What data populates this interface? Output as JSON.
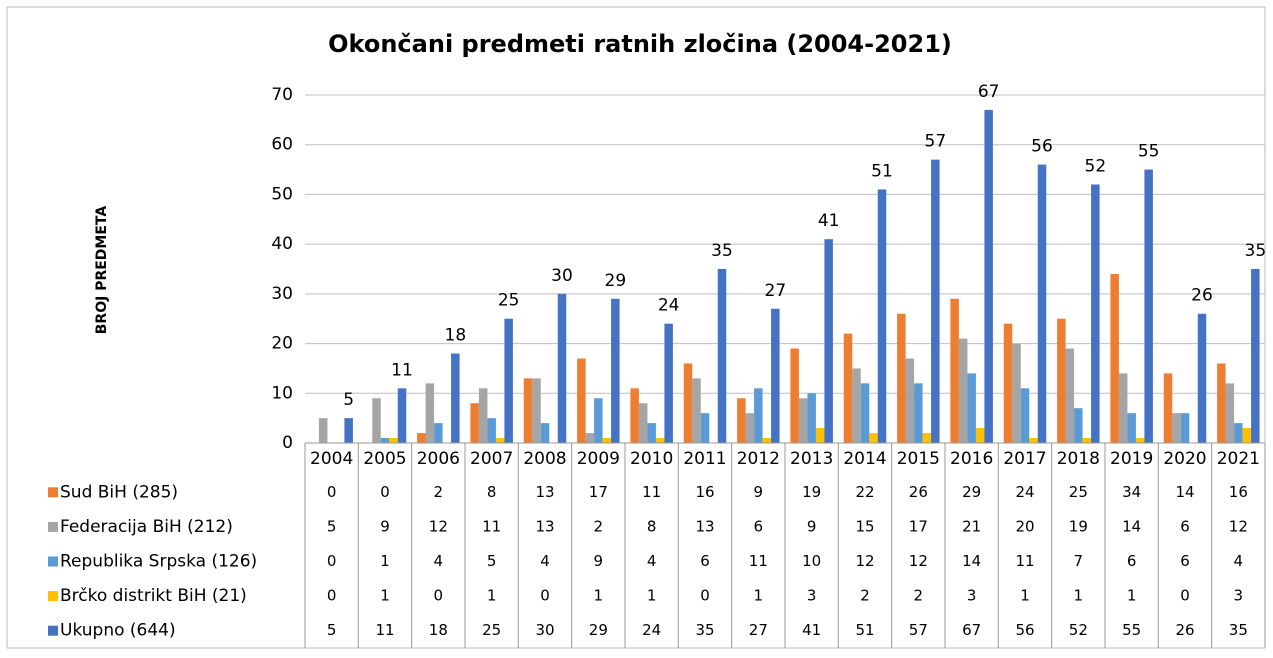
{
  "chart_data": {
    "type": "bar",
    "title": "Okončani predmeti ratnih zločina (2004-2021)",
    "ylabel": "BROJ PREDMETA",
    "categories": [
      "2004",
      "2005",
      "2006",
      "2007",
      "2008",
      "2009",
      "2010",
      "2011",
      "2012",
      "2013",
      "2014",
      "2015",
      "2016",
      "2017",
      "2018",
      "2019",
      "2020",
      "2021"
    ],
    "series": [
      {
        "name": "Sud BiH (285)",
        "color": "#ED7D31",
        "values": [
          0,
          0,
          2,
          8,
          13,
          17,
          11,
          16,
          9,
          19,
          22,
          26,
          29,
          24,
          25,
          34,
          14,
          16
        ]
      },
      {
        "name": "Federacija BiH (212)",
        "color": "#A5A5A5",
        "values": [
          5,
          9,
          12,
          11,
          13,
          2,
          8,
          13,
          6,
          9,
          15,
          17,
          21,
          20,
          19,
          14,
          6,
          12
        ]
      },
      {
        "name": "Republika Srpska (126)",
        "color": "#5B9BD5",
        "values": [
          0,
          1,
          4,
          5,
          4,
          9,
          4,
          6,
          11,
          10,
          12,
          12,
          14,
          11,
          7,
          6,
          6,
          4
        ]
      },
      {
        "name": "Brčko distrikt  BiH (21)",
        "color": "#FFC000",
        "values": [
          0,
          1,
          0,
          1,
          0,
          1,
          1,
          0,
          1,
          3,
          2,
          2,
          3,
          1,
          1,
          1,
          0,
          3
        ]
      },
      {
        "name": "Ukupno (644)",
        "color": "#4472C4",
        "values": [
          5,
          11,
          18,
          25,
          30,
          29,
          24,
          35,
          27,
          41,
          51,
          57,
          67,
          56,
          52,
          55,
          26,
          35
        ]
      }
    ],
    "ylim": [
      0,
      70
    ],
    "yticks": [
      0,
      10,
      20,
      30,
      40,
      50,
      60,
      70
    ],
    "grid": true
  }
}
